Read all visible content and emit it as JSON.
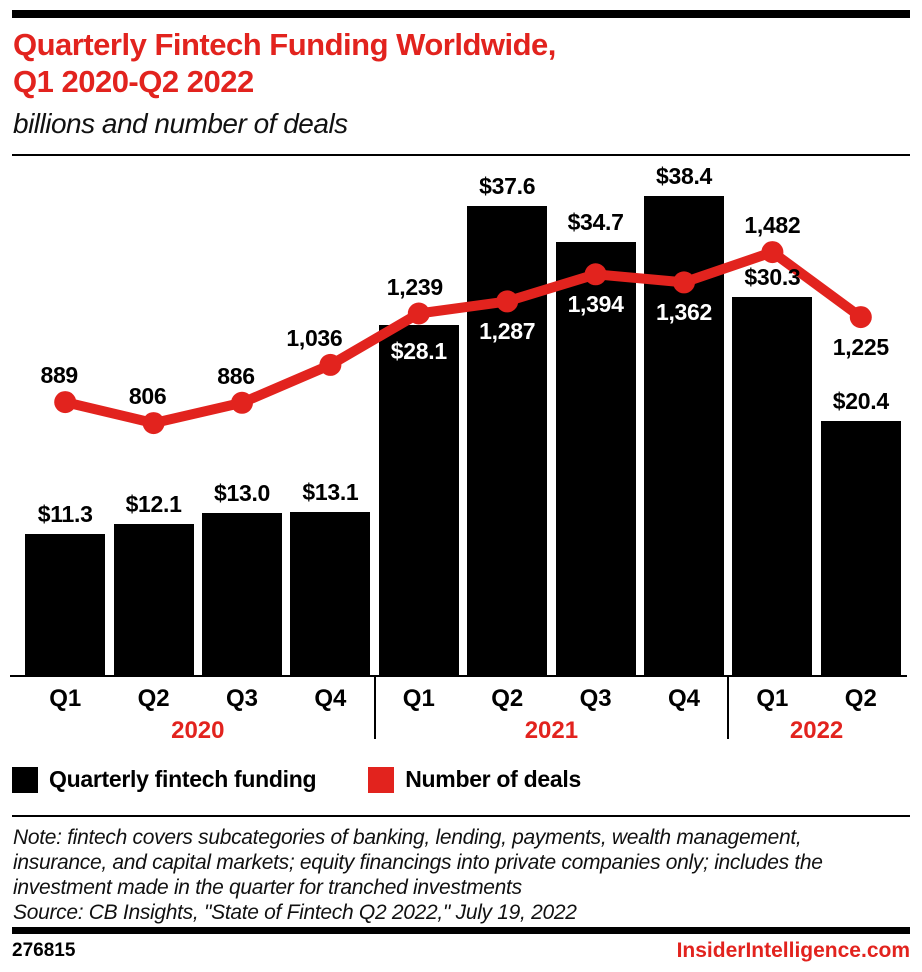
{
  "header": {
    "title_line1": "Quarterly Fintech Funding Worldwide,",
    "title_line2": "Q1 2020-Q2 2022",
    "subtitle": "billions and number of deals"
  },
  "chart_data": {
    "type": "bar",
    "combo": "bar+line",
    "title": "Quarterly Fintech Funding Worldwide, Q1 2020-Q2 2022",
    "subtitle": "billions and number of deals",
    "categories": [
      "Q1 2020",
      "Q2 2020",
      "Q3 2020",
      "Q4 2020",
      "Q1 2021",
      "Q2 2021",
      "Q3 2021",
      "Q4 2021",
      "Q1 2022",
      "Q2 2022"
    ],
    "x_tick_labels": [
      "Q1",
      "Q2",
      "Q3",
      "Q4",
      "Q1",
      "Q2",
      "Q3",
      "Q4",
      "Q1",
      "Q2"
    ],
    "year_groups": [
      {
        "label": "2020",
        "quarters": 4
      },
      {
        "label": "2021",
        "quarters": 4
      },
      {
        "label": "2022",
        "quarters": 2
      }
    ],
    "series": [
      {
        "name": "Quarterly fintech funding",
        "render": "bar",
        "unit": "billions of US dollars",
        "color": "#000000",
        "values": [
          11.3,
          12.1,
          13.0,
          13.1,
          28.1,
          37.6,
          34.7,
          38.4,
          30.3,
          20.4
        ],
        "labels": [
          "$11.3",
          "$12.1",
          "$13.0",
          "$13.1",
          "$28.1",
          "$37.6",
          "$34.7",
          "$38.4",
          "$30.3",
          "$20.4"
        ],
        "label_placement": [
          "above",
          "above",
          "above",
          "above",
          "inside",
          "above",
          "above",
          "above",
          "above",
          "above"
        ]
      },
      {
        "name": "Number of deals",
        "render": "line",
        "unit": "deals",
        "color": "#e2231e",
        "values": [
          889,
          806,
          886,
          1036,
          1239,
          1287,
          1394,
          1362,
          1482,
          1225
        ],
        "labels": [
          "889",
          "806",
          "886",
          "1,036",
          "1,239",
          "1,287",
          "1,394",
          "1,362",
          "1,482",
          "1,225"
        ],
        "label_placement": [
          "above",
          "above",
          "above",
          "above",
          "above",
          "inside",
          "inside",
          "inside",
          "above",
          "below"
        ],
        "label_dx": [
          -6,
          -6,
          -6,
          -16,
          -4,
          0,
          0,
          0,
          0,
          0
        ]
      }
    ],
    "ylim_bars": [
      0,
      41
    ],
    "grid": false,
    "legend_position": "bottom"
  },
  "legend": {
    "items": [
      {
        "label": "Quarterly fintech funding",
        "color": "#000000"
      },
      {
        "label": "Number of deals",
        "color": "#e2231e"
      }
    ]
  },
  "footer": {
    "note_text": "Note: fintech covers subcategories of banking, lending, payments, wealth management,\ninsurance, and capital markets; equity financings into private companies only; includes the\ninvestment made in the quarter for tranched investments\nSource: CB Insights, \"State of Fintech Q2 2022,\" July 19, 2022",
    "chart_id": "276815",
    "site": "InsiderIntelligence.com"
  },
  "colors": {
    "brand_red": "#e2231e",
    "bar_black": "#000000",
    "background": "#ffffff"
  }
}
